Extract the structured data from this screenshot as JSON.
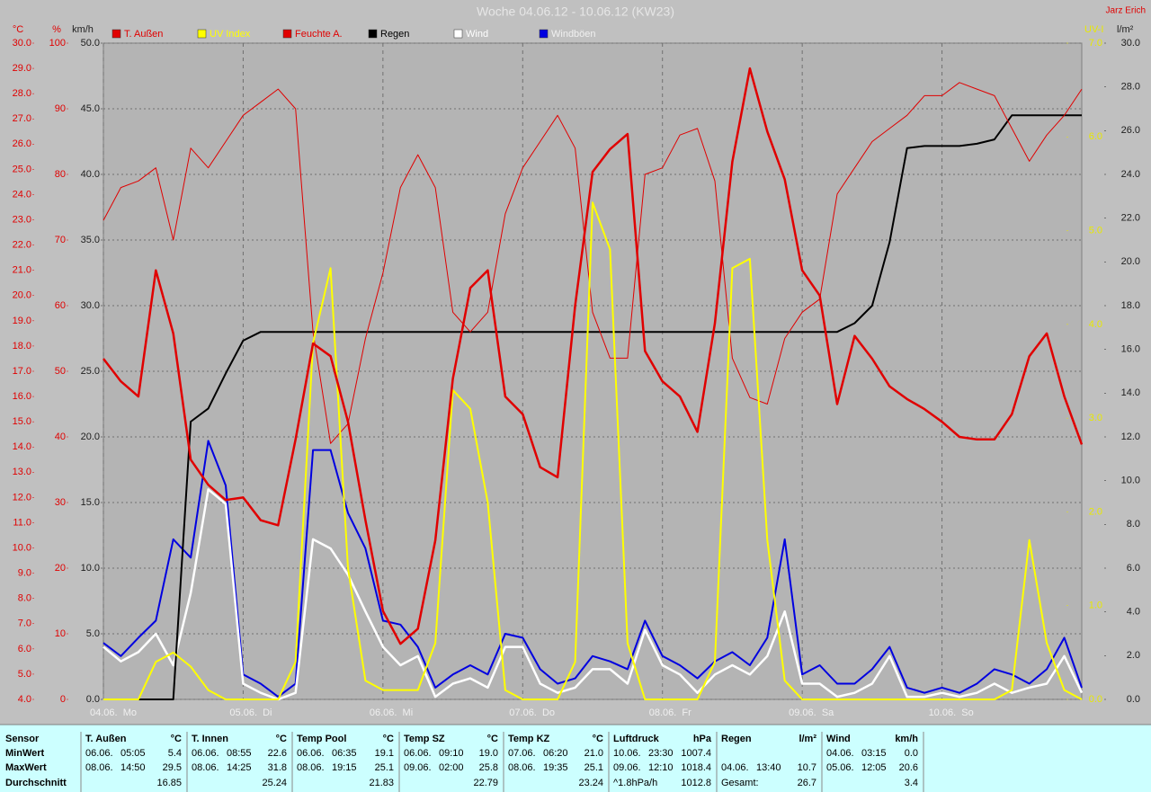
{
  "chart_data": {
    "type": "line",
    "title": "Woche 04.06.12 - 10.06.12 (KW23)",
    "author": "Jarz Erich",
    "x": [
      0,
      3,
      6,
      9,
      12,
      15,
      18,
      21,
      24,
      27,
      30,
      33,
      36,
      39,
      42,
      45,
      48,
      51,
      54,
      57,
      60,
      63,
      66,
      69,
      72,
      75,
      78,
      81,
      84,
      87,
      90,
      93,
      96,
      99,
      102,
      105,
      108,
      111,
      114,
      117,
      120,
      123,
      126,
      129,
      132,
      135,
      138,
      141,
      144,
      147,
      150,
      153,
      156,
      159,
      162,
      165,
      168
    ],
    "xlim": [
      0,
      168
    ],
    "xticks": [
      {
        "value": 0,
        "label": "04.06.  Mo"
      },
      {
        "value": 24,
        "label": "05.06.  Di"
      },
      {
        "value": 48,
        "label": "06.06.  Mi"
      },
      {
        "value": 72,
        "label": "07.06.  Do"
      },
      {
        "value": 96,
        "label": "08.06.  Fr"
      },
      {
        "value": 120,
        "label": "09.06.  Sa"
      },
      {
        "value": 144,
        "label": "10.06.  So"
      }
    ],
    "ylabel": "km/h",
    "ylim": [
      0,
      50
    ],
    "yticks": [
      {
        "value": 0,
        "label": "0.0"
      },
      {
        "value": 5,
        "label": "5.0"
      },
      {
        "value": 10,
        "label": "10.0"
      },
      {
        "value": 15,
        "label": "15.0"
      },
      {
        "value": 20,
        "label": "20.0"
      },
      {
        "value": 25,
        "label": "25.0"
      },
      {
        "value": 30,
        "label": "30.0"
      },
      {
        "value": 35,
        "label": "35.0"
      },
      {
        "value": 40,
        "label": "40.0"
      },
      {
        "value": 45,
        "label": "45.0"
      },
      {
        "value": 50,
        "label": "50.0"
      }
    ],
    "y2label": "UV-I",
    "y2lim": [
      0,
      7
    ],
    "y2ticks": [
      {
        "value": 0,
        "label": "0.0"
      },
      {
        "value": 1,
        "label": "1.0"
      },
      {
        "value": 2,
        "label": "2.0"
      },
      {
        "value": 3,
        "label": "3.0"
      },
      {
        "value": 4,
        "label": "4.0"
      },
      {
        "value": 5,
        "label": "5.0"
      },
      {
        "value": 6,
        "label": "6.0"
      },
      {
        "value": 7,
        "label": "7.0"
      }
    ],
    "y3label": "l/m²",
    "y3lim": [
      0,
      30
    ],
    "y3ticks": [
      {
        "value": 0,
        "label": "0.0"
      },
      {
        "value": 2,
        "label": "2.0"
      },
      {
        "value": 4,
        "label": "4.0"
      },
      {
        "value": 6,
        "label": "6.0"
      },
      {
        "value": 8,
        "label": "8.0"
      },
      {
        "value": 10,
        "label": "10.0"
      },
      {
        "value": 12,
        "label": "12.0"
      },
      {
        "value": 14,
        "label": "14.0"
      },
      {
        "value": 16,
        "label": "16.0"
      },
      {
        "value": 18,
        "label": "18.0"
      },
      {
        "value": 20,
        "label": "20.0"
      },
      {
        "value": 22,
        "label": "22.0"
      },
      {
        "value": 24,
        "label": "24.0"
      },
      {
        "value": 26,
        "label": "26.0"
      },
      {
        "value": 28,
        "label": "28.0"
      },
      {
        "value": 30,
        "label": "30.0"
      }
    ],
    "y4label": "°C",
    "y4lim": [
      4,
      30
    ],
    "y4ticks": [
      {
        "value": 4,
        "label": "4.0"
      },
      {
        "value": 5,
        "label": "5.0"
      },
      {
        "value": 6,
        "label": "6.0"
      },
      {
        "value": 7,
        "label": "7.0"
      },
      {
        "value": 8,
        "label": "8.0"
      },
      {
        "value": 9,
        "label": "9.0"
      },
      {
        "value": 10,
        "label": "10.0"
      },
      {
        "value": 11,
        "label": "11.0"
      },
      {
        "value": 12,
        "label": "12.0"
      },
      {
        "value": 13,
        "label": "13.0"
      },
      {
        "value": 14,
        "label": "14.0"
      },
      {
        "value": 15,
        "label": "15.0"
      },
      {
        "value": 16,
        "label": "16.0"
      },
      {
        "value": 17,
        "label": "17.0"
      },
      {
        "value": 18,
        "label": "18.0"
      },
      {
        "value": 19,
        "label": "19.0"
      },
      {
        "value": 20,
        "label": "20.0"
      },
      {
        "value": 21,
        "label": "21.0"
      },
      {
        "value": 22,
        "label": "22.0"
      },
      {
        "value": 23,
        "label": "23.0"
      },
      {
        "value": 24,
        "label": "24.0"
      },
      {
        "value": 25,
        "label": "25.0"
      },
      {
        "value": 26,
        "label": "26.0"
      },
      {
        "value": 27,
        "label": "27.0"
      },
      {
        "value": 28,
        "label": "28.0"
      },
      {
        "value": 29,
        "label": "29.0"
      },
      {
        "value": 30,
        "label": "30.0"
      }
    ],
    "y5label": "%",
    "y5lim": [
      0,
      100
    ],
    "y5ticks": [
      0,
      10,
      20,
      30,
      40,
      50,
      60,
      70,
      80,
      90,
      100
    ],
    "grid": true,
    "series": [
      {
        "name": "T. Außen",
        "color": "#e00000",
        "axis": "y4",
        "linewidth": 2.5,
        "values": [
          17.5,
          16.6,
          16.0,
          21.0,
          18.5,
          13.5,
          12.5,
          11.9,
          12.0,
          11.1,
          10.9,
          14.3,
          18.1,
          17.6,
          15.0,
          11.1,
          7.5,
          6.2,
          6.8,
          10.3,
          16.7,
          20.3,
          21.0,
          16.0,
          15.3,
          13.2,
          12.8,
          19.6,
          24.9,
          25.8,
          26.4,
          17.8,
          16.6,
          16.0,
          14.6,
          18.9,
          25.3,
          29.0,
          26.5,
          24.6,
          21.0,
          20.0,
          15.7,
          18.4,
          17.5,
          16.4,
          15.9,
          15.5,
          15.0,
          14.4,
          14.3,
          14.3,
          15.3,
          17.6,
          18.5,
          16.0,
          14.1
        ]
      },
      {
        "name": "UV Index",
        "color": "#ffff00",
        "axis": "y2",
        "linewidth": 2,
        "values": [
          0,
          0,
          0,
          0.4,
          0.5,
          0.35,
          0.1,
          0,
          0,
          0,
          0,
          0.4,
          3.8,
          4.6,
          1.4,
          0.2,
          0.1,
          0.1,
          0.1,
          0.6,
          3.3,
          3.1,
          2.1,
          0.1,
          0,
          0,
          0,
          0.4,
          5.3,
          4.8,
          0.6,
          0,
          0,
          0,
          0,
          0.4,
          4.6,
          4.7,
          1.7,
          0.2,
          0,
          0,
          0,
          0,
          0,
          0,
          0,
          0,
          0,
          0,
          0,
          0,
          0.1,
          1.7,
          0.6,
          0.1,
          0
        ]
      },
      {
        "name": "Feuchte A.",
        "color": "#e00000",
        "axis": "y5",
        "linewidth": 1,
        "values": [
          73,
          78,
          79,
          81,
          70,
          84,
          81,
          85,
          89,
          91,
          93,
          90,
          56,
          39,
          42,
          55,
          65,
          78,
          83,
          78,
          59,
          56,
          59,
          74,
          81,
          85,
          89,
          84,
          59,
          52,
          52,
          80,
          81,
          86,
          87,
          79,
          52,
          46,
          45,
          55,
          59,
          61,
          77,
          81,
          85,
          87,
          89,
          92,
          92,
          94,
          93,
          92,
          87,
          82,
          86,
          89,
          93
        ]
      },
      {
        "name": "Regen",
        "color": "#000000",
        "axis": "y3",
        "linewidth": 2,
        "values": [
          0,
          0,
          0,
          0,
          0,
          12.7,
          13.3,
          14.9,
          16.4,
          16.8,
          16.8,
          16.8,
          16.8,
          16.8,
          16.8,
          16.8,
          16.8,
          16.8,
          16.8,
          16.8,
          16.8,
          16.8,
          16.8,
          16.8,
          16.8,
          16.8,
          16.8,
          16.8,
          16.8,
          16.8,
          16.8,
          16.8,
          16.8,
          16.8,
          16.8,
          16.8,
          16.8,
          16.8,
          16.8,
          16.8,
          16.8,
          16.8,
          16.8,
          17.2,
          18.0,
          20.9,
          25.2,
          25.3,
          25.3,
          25.3,
          25.4,
          25.6,
          26.7,
          26.7,
          26.7,
          26.7,
          26.7
        ]
      },
      {
        "name": "Wind",
        "color": "#ffffff",
        "axis": "y",
        "linewidth": 2.5,
        "values": [
          4.0,
          2.9,
          3.6,
          5.0,
          2.6,
          8.1,
          16.0,
          14.9,
          1.2,
          0.5,
          0,
          0.5,
          12.2,
          11.5,
          9.5,
          6.7,
          4.0,
          2.6,
          3.3,
          0.2,
          1.2,
          1.6,
          0.9,
          4.0,
          4.0,
          1.2,
          0.5,
          0.9,
          2.3,
          2.3,
          1.2,
          5.3,
          2.6,
          1.9,
          0.5,
          1.9,
          2.6,
          1.9,
          3.3,
          6.7,
          1.2,
          1.2,
          0.2,
          0.5,
          1.2,
          3.3,
          0.2,
          0.2,
          0.5,
          0.2,
          0.5,
          1.2,
          0.5,
          0.9,
          1.2,
          3.3,
          0.5
        ]
      },
      {
        "name": "Windböen",
        "color": "#0000e0",
        "axis": "y",
        "linewidth": 2,
        "values": [
          4.3,
          3.3,
          4.7,
          6.0,
          12.2,
          10.8,
          19.7,
          16.3,
          1.9,
          1.2,
          0.2,
          1.2,
          19.0,
          19.0,
          14.2,
          11.5,
          6.0,
          5.7,
          4.0,
          0.9,
          1.9,
          2.6,
          1.9,
          5.0,
          4.7,
          2.3,
          1.2,
          1.6,
          3.3,
          2.9,
          2.3,
          6.0,
          3.3,
          2.6,
          1.6,
          2.9,
          3.6,
          2.6,
          4.7,
          12.2,
          1.9,
          2.6,
          1.2,
          1.2,
          2.3,
          4.0,
          0.9,
          0.5,
          0.9,
          0.5,
          1.2,
          2.3,
          1.9,
          1.2,
          2.3,
          4.7,
          0.9
        ]
      }
    ]
  },
  "table": {
    "row_labels": [
      "Sensor",
      "MinWert",
      "MaxWert",
      "Durchschnitt"
    ],
    "columns": [
      {
        "title": "T. Außen",
        "unit": "°C",
        "rows": [
          [
            "06.06.",
            "05:05",
            "5.4"
          ],
          [
            "08.06.",
            "14:50",
            "29.5"
          ],
          [
            "16.85"
          ]
        ]
      },
      {
        "title": "T. Innen",
        "unit": "°C",
        "rows": [
          [
            "06.06.",
            "08:55",
            "22.6"
          ],
          [
            "08.06.",
            "14:25",
            "31.8"
          ],
          [
            "25.24"
          ]
        ]
      },
      {
        "title": "Temp Pool",
        "unit": "°C",
        "rows": [
          [
            "06.06.",
            "06:35",
            "19.1"
          ],
          [
            "08.06.",
            "19:15",
            "25.1"
          ],
          [
            "21.83"
          ]
        ]
      },
      {
        "title": "Temp SZ",
        "unit": "°C",
        "rows": [
          [
            "06.06.",
            "09:10",
            "19.0"
          ],
          [
            "09.06.",
            "02:00",
            "25.8"
          ],
          [
            "22.79"
          ]
        ]
      },
      {
        "title": "Temp KZ",
        "unit": "°C",
        "rows": [
          [
            "07.06.",
            "06:20",
            "21.0"
          ],
          [
            "08.06.",
            "19:35",
            "25.1"
          ],
          [
            "23.24"
          ]
        ]
      },
      {
        "title": "Luftdruck",
        "unit": "hPa",
        "rows": [
          [
            "10.06.",
            "23:30",
            "1007.4"
          ],
          [
            "09.06.",
            "12:10",
            "1018.4"
          ],
          [
            "^1.8hPa/h",
            "1012.8"
          ]
        ]
      },
      {
        "title": "Regen",
        "unit": "l/m²",
        "rows": [
          [],
          [
            "04.06.",
            "13:40",
            "10.7"
          ],
          [
            "Gesamt:",
            "26.7"
          ]
        ]
      },
      {
        "title": "Wind",
        "unit": "km/h",
        "rows": [
          [
            "04.06.",
            "03:15",
            "0.0"
          ],
          [
            "05.06.",
            "12:05",
            "20.6"
          ],
          [
            "3.4"
          ]
        ]
      }
    ]
  }
}
